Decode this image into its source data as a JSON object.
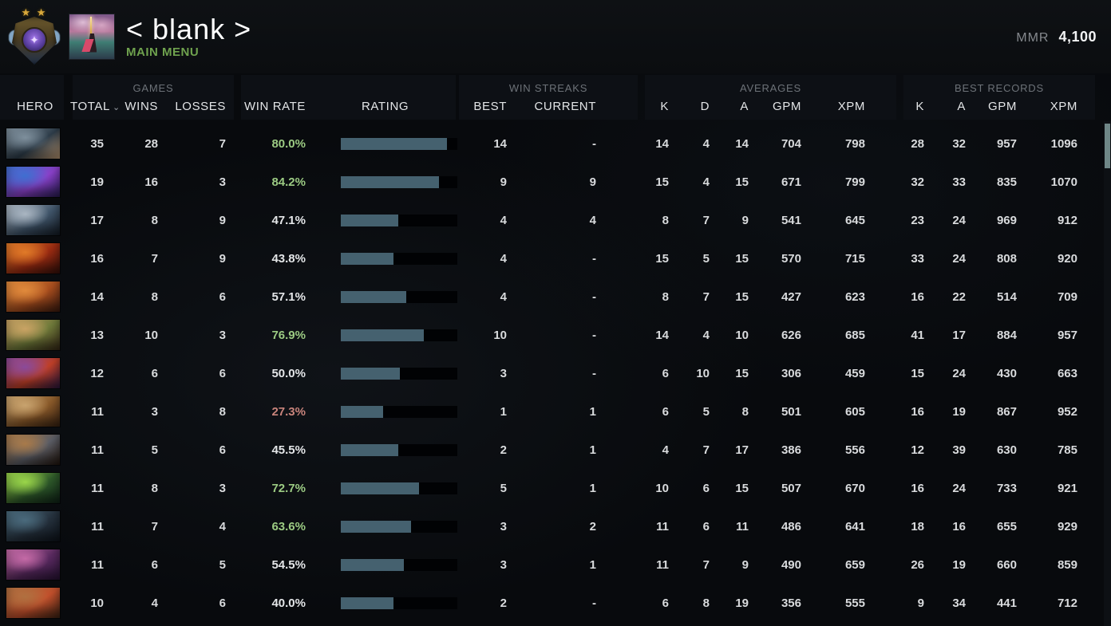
{
  "top_bar": {
    "player_name": "< blank >",
    "menu_label": "MAIN MENU",
    "mmr_label": "MMR",
    "mmr_value": "4,100",
    "rank_stars": "★ ★",
    "rank_core_glyph": "✦"
  },
  "colors": {
    "win_rate_green": "#9ccb83",
    "win_rate_red": "#c9847c",
    "win_rate_neutral": "#e4e6e8",
    "rating_bar_fill": "#45616f",
    "rating_bar_bg": "#010204",
    "menu_green": "#6fa24e",
    "scrollbar_thumb": "#6f8787",
    "panel_bg": "#0d1015"
  },
  "table": {
    "group_titles": {
      "games": "GAMES",
      "win_streaks": "WIN STREAKS",
      "averages": "AVERAGES",
      "best_records": "BEST RECORDS"
    },
    "columns": {
      "hero": "HERO",
      "total": "TOTAL",
      "wins": "WINS",
      "losses": "LOSSES",
      "win_rate": "WIN RATE",
      "rating": "RATING",
      "best": "BEST",
      "current": "CURRENT",
      "k": "K",
      "d": "D",
      "a": "A",
      "gpm": "GPM",
      "xpm": "XPM",
      "sort_caret": "⌄"
    },
    "rows": [
      {
        "hero": "kunkka",
        "portrait_colors": [
          "#7e8f9c",
          "#2e3d4a",
          "#c7a27b"
        ],
        "total": 35,
        "wins": 28,
        "losses": 7,
        "win_rate": "80.0%",
        "win_rate_tone": "green",
        "rating_fill": 0.91,
        "streak_best": "14",
        "streak_current": "-",
        "avg_k": 14,
        "avg_d": 4,
        "avg_a": 14,
        "avg_gpm": 704,
        "avg_xpm": 798,
        "best_k": 28,
        "best_a": 32,
        "best_gpm": 957,
        "best_xpm": 1096
      },
      {
        "hero": "puck",
        "portrait_colors": [
          "#3f6fd0",
          "#8a41c9",
          "#2b1e5a"
        ],
        "total": 19,
        "wins": 16,
        "losses": 3,
        "win_rate": "84.2%",
        "win_rate_tone": "green",
        "rating_fill": 0.84,
        "streak_best": "9",
        "streak_current": "9",
        "avg_k": 15,
        "avg_d": 4,
        "avg_a": 15,
        "avg_gpm": 671,
        "avg_xpm": 799,
        "best_k": 32,
        "best_a": 33,
        "best_gpm": 835,
        "best_xpm": 1070
      },
      {
        "hero": "sven",
        "portrait_colors": [
          "#aab6c2",
          "#41566b",
          "#141c26"
        ],
        "total": 17,
        "wins": 8,
        "losses": 9,
        "win_rate": "47.1%",
        "win_rate_tone": "neutral",
        "rating_fill": 0.49,
        "streak_best": "4",
        "streak_current": "4",
        "avg_k": 8,
        "avg_d": 7,
        "avg_a": 9,
        "avg_gpm": 541,
        "avg_xpm": 645,
        "best_k": 23,
        "best_a": 24,
        "best_gpm": 969,
        "best_xpm": 912
      },
      {
        "hero": "ember-spirit",
        "portrait_colors": [
          "#e07a28",
          "#9c2c12",
          "#38100a"
        ],
        "total": 16,
        "wins": 7,
        "losses": 9,
        "win_rate": "43.8%",
        "win_rate_tone": "neutral",
        "rating_fill": 0.45,
        "streak_best": "4",
        "streak_current": "-",
        "avg_k": 15,
        "avg_d": 5,
        "avg_a": 15,
        "avg_gpm": 570,
        "avg_xpm": 715,
        "best_k": 33,
        "best_a": 24,
        "best_gpm": 808,
        "best_xpm": 920
      },
      {
        "hero": "bristleback",
        "portrait_colors": [
          "#e08a3c",
          "#a84e1e",
          "#401c10"
        ],
        "total": 14,
        "wins": 8,
        "losses": 6,
        "win_rate": "57.1%",
        "win_rate_tone": "neutral",
        "rating_fill": 0.56,
        "streak_best": "4",
        "streak_current": "-",
        "avg_k": 8,
        "avg_d": 7,
        "avg_a": 15,
        "avg_gpm": 427,
        "avg_xpm": 623,
        "best_k": 16,
        "best_a": 22,
        "best_gpm": 514,
        "best_xpm": 709
      },
      {
        "hero": "monkey-king",
        "portrait_colors": [
          "#c9a364",
          "#6f7a3a",
          "#3a2c18"
        ],
        "total": 13,
        "wins": 10,
        "losses": 3,
        "win_rate": "76.9%",
        "win_rate_tone": "green",
        "rating_fill": 0.71,
        "streak_best": "10",
        "streak_current": "-",
        "avg_k": 14,
        "avg_d": 4,
        "avg_a": 10,
        "avg_gpm": 626,
        "avg_xpm": 685,
        "best_k": 41,
        "best_a": 17,
        "best_gpm": 884,
        "best_xpm": 957
      },
      {
        "hero": "night-stalker",
        "portrait_colors": [
          "#8a4a9a",
          "#c04028",
          "#2e1840"
        ],
        "total": 12,
        "wins": 6,
        "losses": 6,
        "win_rate": "50.0%",
        "win_rate_tone": "neutral",
        "rating_fill": 0.51,
        "streak_best": "3",
        "streak_current": "-",
        "avg_k": 6,
        "avg_d": 10,
        "avg_a": 15,
        "avg_gpm": 306,
        "avg_xpm": 459,
        "best_k": 15,
        "best_a": 24,
        "best_gpm": 430,
        "best_xpm": 663
      },
      {
        "hero": "sand-king",
        "portrait_colors": [
          "#c8a36e",
          "#8a5a2a",
          "#3c2412"
        ],
        "total": 11,
        "wins": 3,
        "losses": 8,
        "win_rate": "27.3%",
        "win_rate_tone": "red",
        "rating_fill": 0.36,
        "streak_best": "1",
        "streak_current": "1",
        "avg_k": 6,
        "avg_d": 5,
        "avg_a": 8,
        "avg_gpm": 501,
        "avg_xpm": 605,
        "best_k": 16,
        "best_a": 19,
        "best_gpm": 867,
        "best_xpm": 952
      },
      {
        "hero": "magnus",
        "portrait_colors": [
          "#a87a4a",
          "#5c5e66",
          "#23160e"
        ],
        "total": 11,
        "wins": 5,
        "losses": 6,
        "win_rate": "45.5%",
        "win_rate_tone": "neutral",
        "rating_fill": 0.49,
        "streak_best": "2",
        "streak_current": "1",
        "avg_k": 4,
        "avg_d": 7,
        "avg_a": 17,
        "avg_gpm": 386,
        "avg_xpm": 556,
        "best_k": 12,
        "best_a": 39,
        "best_gpm": 630,
        "best_xpm": 785
      },
      {
        "hero": "wraith-king",
        "portrait_colors": [
          "#9ad54a",
          "#2f5a2a",
          "#0f2418"
        ],
        "total": 11,
        "wins": 8,
        "losses": 3,
        "win_rate": "72.7%",
        "win_rate_tone": "green",
        "rating_fill": 0.67,
        "streak_best": "5",
        "streak_current": "1",
        "avg_k": 10,
        "avg_d": 6,
        "avg_a": 15,
        "avg_gpm": 507,
        "avg_xpm": 670,
        "best_k": 16,
        "best_a": 24,
        "best_gpm": 733,
        "best_xpm": 921
      },
      {
        "hero": "legion-commander",
        "portrait_colors": [
          "#4a6a7c",
          "#26323e",
          "#0e141c"
        ],
        "total": 11,
        "wins": 7,
        "losses": 4,
        "win_rate": "63.6%",
        "win_rate_tone": "green",
        "rating_fill": 0.6,
        "streak_best": "3",
        "streak_current": "2",
        "avg_k": 11,
        "avg_d": 6,
        "avg_a": 11,
        "avg_gpm": 486,
        "avg_xpm": 641,
        "best_k": 18,
        "best_a": 16,
        "best_gpm": 655,
        "best_xpm": 929
      },
      {
        "hero": "templar-assassin",
        "portrait_colors": [
          "#c46aa6",
          "#5a2a60",
          "#2a1438"
        ],
        "total": 11,
        "wins": 6,
        "losses": 5,
        "win_rate": "54.5%",
        "win_rate_tone": "neutral",
        "rating_fill": 0.54,
        "streak_best": "3",
        "streak_current": "1",
        "avg_k": 11,
        "avg_d": 7,
        "avg_a": 9,
        "avg_gpm": 490,
        "avg_xpm": 659,
        "best_k": 26,
        "best_a": 19,
        "best_gpm": 660,
        "best_xpm": 859
      },
      {
        "hero": "earthshaker",
        "portrait_colors": [
          "#b07040",
          "#c2502c",
          "#402414"
        ],
        "total": 10,
        "wins": 4,
        "losses": 6,
        "win_rate": "40.0%",
        "win_rate_tone": "neutral",
        "rating_fill": 0.45,
        "streak_best": "2",
        "streak_current": "-",
        "avg_k": 6,
        "avg_d": 8,
        "avg_a": 19,
        "avg_gpm": 356,
        "avg_xpm": 555,
        "best_k": 9,
        "best_a": 34,
        "best_gpm": 441,
        "best_xpm": 712
      }
    ]
  }
}
